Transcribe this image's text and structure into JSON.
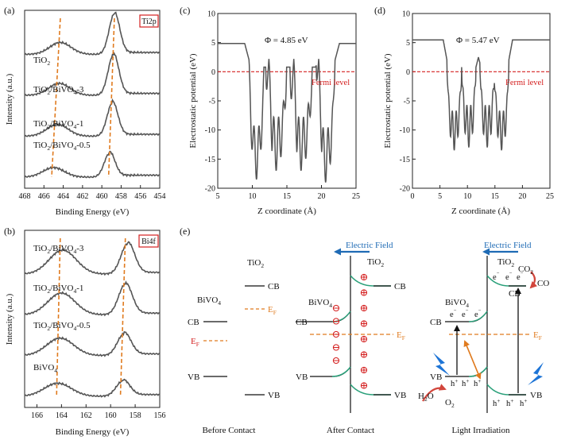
{
  "colors": {
    "axis": "#222222",
    "curve": "#555555",
    "dash": "#e07b1f",
    "fermi": "#d42020",
    "field": "#1f6bb5",
    "plus": "#d42020",
    "band": "#2aa07a",
    "arrow_red": "#d2463c",
    "arrow_orange": "#e07b1f",
    "light": "#1d74d6",
    "box": "#d42020"
  },
  "chart_data": [
    {
      "id": "a",
      "type": "line",
      "panel_label": "(a)",
      "badge": "Ti2p",
      "xlabel": "Binding Energy (eV)",
      "ylabel": "Intensity (a.u.)",
      "xlim": [
        468,
        454
      ],
      "xticks": [
        468,
        466,
        464,
        462,
        460,
        458,
        456,
        454
      ],
      "dashed_lines": [
        [
          464.3,
          465.2
        ],
        [
          458.7,
          459.3
        ]
      ],
      "series": [
        {
          "name": "TiO2",
          "label_main": "TiO",
          "label_sub": "2",
          "peak1_x": 464.3,
          "peak1_h": 0.25,
          "peak2_x": 458.7,
          "peak2_h": 0.85,
          "base": 0.75
        },
        {
          "name": "TiO2/BiVO4-3",
          "label_main": "TiO",
          "label_sub": "2",
          "label_rest": "/BiVO",
          "label_sub2": "4",
          "label_tail": "-3",
          "peak1_x": 464.4,
          "peak1_h": 0.25,
          "peak2_x": 458.8,
          "peak2_h": 0.85,
          "base": 0.5
        },
        {
          "name": "TiO2/BiVO4-1",
          "label_main": "TiO",
          "label_sub": "2",
          "label_rest": "/BiVO",
          "label_sub2": "4",
          "label_tail": "-1",
          "peak1_x": 464.6,
          "peak1_h": 0.25,
          "peak2_x": 458.9,
          "peak2_h": 0.7,
          "base": 0.25
        },
        {
          "name": "TiO2/BiVO4-0.5",
          "label_main": "TiO",
          "label_sub": "2",
          "label_rest": "/BiVO",
          "label_sub2": "4",
          "label_tail": "-0.5",
          "peak1_x": 465.0,
          "peak1_h": 0.2,
          "peak2_x": 459.2,
          "peak2_h": 0.5,
          "base": 0.0
        }
      ]
    },
    {
      "id": "b",
      "type": "line",
      "panel_label": "(b)",
      "badge": "Bi4f",
      "xlabel": "Binding Energy (eV)",
      "ylabel": "Intensity (a.u.)",
      "xlim": [
        167,
        156
      ],
      "xticks": [
        166,
        164,
        162,
        160,
        158,
        156
      ],
      "dashed_lines": [
        [
          164.1,
          164.4
        ],
        [
          158.8,
          159.2
        ]
      ],
      "series": [
        {
          "name": "TiO2/BiVO4-3",
          "label_main": "TiO",
          "label_sub": "2",
          "label_rest": "/BiVO",
          "label_sub2": "4",
          "label_tail": "-3",
          "peak1_x": 163.9,
          "peak1_h": 0.55,
          "peak2_x": 158.6,
          "peak2_h": 0.7,
          "base": 0.75
        },
        {
          "name": "TiO2/BiVO4-1",
          "label_main": "TiO",
          "label_sub": "2",
          "label_rest": "/BiVO",
          "label_sub2": "4",
          "label_tail": "-1",
          "peak1_x": 164.0,
          "peak1_h": 0.5,
          "peak2_x": 158.8,
          "peak2_h": 0.7,
          "base": 0.5
        },
        {
          "name": "TiO2/BiVO4-0.5",
          "label_main": "TiO",
          "label_sub": "2",
          "label_rest": "/BiVO",
          "label_sub2": "4",
          "label_tail": "-0.5",
          "peak1_x": 164.1,
          "peak1_h": 0.4,
          "peak2_x": 158.9,
          "peak2_h": 0.5,
          "base": 0.25
        },
        {
          "name": "BiVO4",
          "label_main": "BiVO",
          "label_sub": "4",
          "peak1_x": 164.3,
          "peak1_h": 0.3,
          "peak2_x": 159.0,
          "peak2_h": 0.35,
          "base": 0.0
        }
      ]
    },
    {
      "id": "c",
      "type": "line",
      "panel_label": "(c)",
      "xlabel": "Z coordinate (Å)",
      "ylabel": "Electrostatic potential (eV)",
      "xlim": [
        5,
        25
      ],
      "ylim": [
        -20,
        10
      ],
      "xticks": [
        5,
        10,
        15,
        20,
        25
      ],
      "yticks": [
        -20,
        -15,
        -10,
        -5,
        0,
        5,
        10
      ],
      "annotation": "Φ = 4.85 eV",
      "fermi_label": "Fermi level",
      "fermi_y": 0,
      "vacuum_level": 4.85,
      "wells": [
        {
          "left": 9.9,
          "right": 11.3,
          "depth": -18.5,
          "mid": -10
        },
        {
          "left": 12.3,
          "right": 14.6,
          "depth": -17,
          "mid": -8
        },
        {
          "left": 15.8,
          "right": 18.3,
          "depth": -17,
          "mid": -8
        },
        {
          "left": 19.6,
          "right": 21.6,
          "depth": -19,
          "mid": -10
        }
      ],
      "spikes_x": [
        12.4,
        16.0,
        19.6
      ],
      "spike_top": 2.2
    },
    {
      "id": "d",
      "type": "line",
      "panel_label": "(d)",
      "xlabel": "Z coordinate (Å)",
      "ylabel": "Electrostatic potential (eV)",
      "xlim": [
        0,
        25
      ],
      "ylim": [
        -20,
        10
      ],
      "xticks": [
        0,
        5,
        10,
        15,
        20,
        25
      ],
      "yticks": [
        -20,
        -15,
        -10,
        -5,
        0,
        5,
        10
      ],
      "annotation": "Φ = 5.47 eV",
      "fermi_label": "Fermi level",
      "fermi_y": 0,
      "vacuum_level": 5.47,
      "wells": [
        {
          "left": 6.6,
          "right": 8.6,
          "depth": -13.5,
          "mid": -7
        },
        {
          "left": 9.3,
          "right": 11.2,
          "depth": -13,
          "mid": -6
        },
        {
          "left": 12.6,
          "right": 14.6,
          "depth": -13,
          "mid": -6
        },
        {
          "left": 15.2,
          "right": 17.2,
          "depth": -13.5,
          "mid": -7
        }
      ],
      "spikes_x": [
        12.0
      ],
      "spike_top": 2.5
    }
  ],
  "panel_e": {
    "label": "(e)",
    "before": {
      "tio2": "TiO",
      "tio2_sub": "2",
      "bivo4": "BiVO",
      "bivo4_sub": "4",
      "cb_right": "CB",
      "vb_right": "VB",
      "cb_left": "CB",
      "vb_left": "VB",
      "ef_main": "E",
      "ef_sub": "F",
      "caption": "Before Contact"
    },
    "after": {
      "field": "Electric Field",
      "tio2": "TiO",
      "tio2_sub": "2",
      "bivo4": "BiVO",
      "bivo4_sub": "4",
      "cb_left": "CB",
      "vb_left": "VB",
      "cb_right": "CB",
      "vb_right": "VB",
      "ef_main": "E",
      "ef_sub": "F",
      "minus": "⊖",
      "plus": "⊕",
      "caption": "After Contact",
      "minus_count": 5,
      "plus_count": 8
    },
    "light": {
      "field": "Electric Field",
      "tio2": "TiO",
      "tio2_sub": "2",
      "bivo4": "BiVO",
      "bivo4_sub": "4",
      "cb_left": "CB",
      "vb_left": "VB",
      "cb_right": "CB",
      "vb_right": "VB",
      "ef_main": "E",
      "ef_sub": "F",
      "electron": "e",
      "hole": "h",
      "co2": "CO",
      "co2_sub": "2",
      "co": "CO",
      "h2o": "H",
      "h2o_sub": "2",
      "h2o_tail": "O",
      "o2": "O",
      "o2_sub": "2",
      "caption": "Light Irradiation"
    }
  }
}
